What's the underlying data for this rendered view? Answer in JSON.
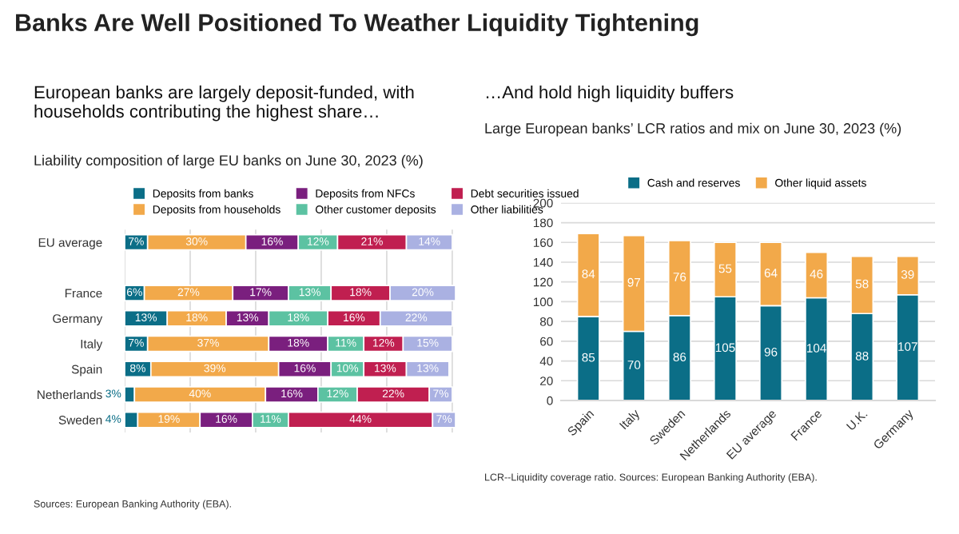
{
  "chart_data": [
    {
      "type": "bar",
      "orientation": "horizontal",
      "stacked": true,
      "title": "European banks are largely deposit-funded, with households contributing the highest share…",
      "subtitle": "Liability composition of large EU banks on June 30, 2023 (%)",
      "annotations": [
        "Banks Are Well Positioned To Weather Liquidity Tightening",
        "Sources: European Banking Authority (EBA)."
      ],
      "categories": [
        "EU average",
        null,
        "France",
        "Germany",
        "Italy",
        "Spain",
        "Netherlands",
        "Sweden"
      ],
      "xlim": [
        0,
        101
      ],
      "xticks": [
        {
          "value": 0,
          "label": null
        },
        {
          "value": 20,
          "label": null
        },
        {
          "value": 40,
          "label": null
        },
        {
          "value": 60,
          "label": null
        },
        {
          "value": 80,
          "label": null
        },
        {
          "value": 100,
          "label": null
        }
      ],
      "tick_labels": "y",
      "grid": "x",
      "legend": "top",
      "series": [
        {
          "name": "Deposits from banks",
          "color": "#0b6e87",
          "values": [
            7,
            null,
            6,
            13,
            7,
            8,
            3,
            4
          ],
          "value_labels": [
            "7%",
            null,
            "6%",
            "13%",
            "7%",
            "8%",
            "3%",
            "4%"
          ]
        },
        {
          "name": "Deposits from households",
          "color": "#f2a94a",
          "values": [
            30,
            null,
            27,
            18,
            37,
            39,
            40,
            19
          ],
          "value_labels": [
            "30%",
            null,
            "27%",
            "18%",
            "37%",
            "39%",
            "40%",
            "19%"
          ]
        },
        {
          "name": "Deposits from NFCs",
          "color": "#7a1f7e",
          "values": [
            16,
            null,
            17,
            13,
            18,
            16,
            16,
            16
          ],
          "value_labels": [
            "16%",
            null,
            "17%",
            "13%",
            "18%",
            "16%",
            "16%",
            "16%"
          ]
        },
        {
          "name": "Other customer deposits",
          "color": "#5cc2a2",
          "values": [
            12,
            null,
            13,
            18,
            11,
            10,
            12,
            11
          ],
          "value_labels": [
            "12%",
            null,
            "13%",
            "18%",
            "11%",
            "10%",
            "12%",
            "11%"
          ]
        },
        {
          "name": "Debt securities issued",
          "color": "#c01f50",
          "values": [
            21,
            null,
            18,
            16,
            12,
            13,
            22,
            44
          ],
          "value_labels": [
            "21%",
            null,
            "18%",
            "16%",
            "12%",
            "13%",
            "22%",
            "44%"
          ]
        },
        {
          "name": "Other liabilities",
          "color": "#aab1e2",
          "values": [
            14,
            null,
            20,
            22,
            15,
            13,
            7,
            7
          ],
          "value_labels": [
            "14%",
            null,
            "20%",
            "22%",
            "15%",
            "13%",
            "7%",
            "7%"
          ]
        }
      ]
    },
    {
      "type": "bar",
      "stacked": true,
      "title": "…And hold high liquidity buffers",
      "subtitle": "Large European banks’ LCR ratios and mix on June 30, 2023 (%)",
      "annotations": [
        "LCR--Liquidity coverage ratio. Sources: European Banking Authority (EBA)."
      ],
      "categories": [
        "Spain",
        "Italy",
        "Sweden",
        "Netherlands",
        "EU average",
        "France",
        "U.K.",
        "Germany"
      ],
      "ylim": [
        0,
        200
      ],
      "yticks": [
        0,
        20,
        40,
        60,
        80,
        100,
        120,
        140,
        160,
        180,
        200
      ],
      "grid": "y",
      "legend": "top",
      "data_labels": true,
      "series": [
        {
          "name": "Cash and reserves",
          "color": "#0b6e87",
          "values": [
            85,
            70,
            86,
            105,
            96,
            104,
            88,
            107
          ]
        },
        {
          "name": "Other liquid assets",
          "color": "#f2a94a",
          "values": [
            84,
            97,
            76,
            55,
            64,
            46,
            58,
            39
          ]
        }
      ]
    }
  ]
}
